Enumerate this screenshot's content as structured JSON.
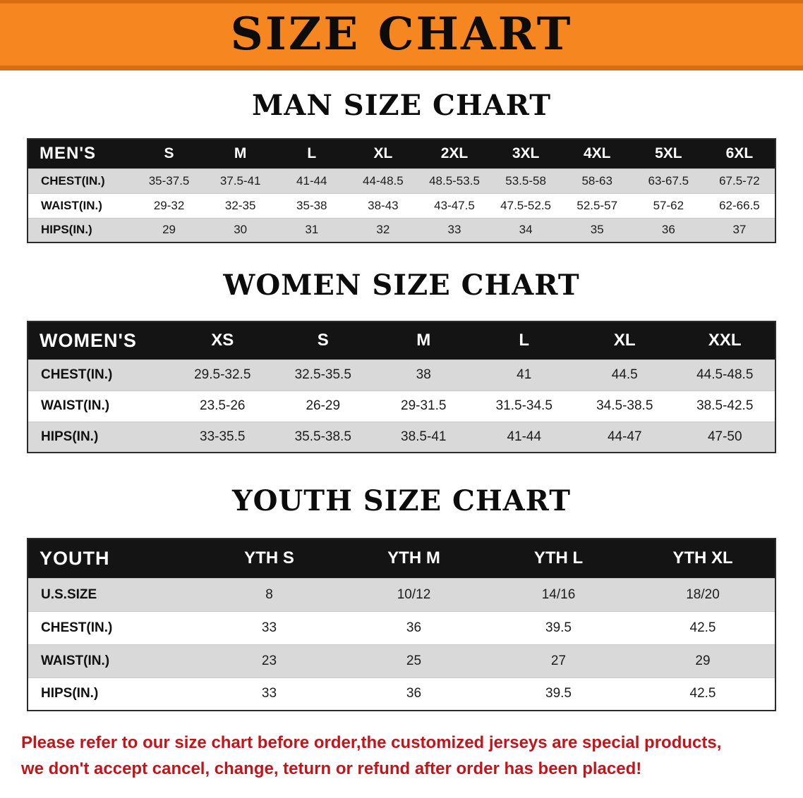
{
  "banner": {
    "title": "SIZE CHART"
  },
  "colors": {
    "banner_bg": "#F6861F",
    "banner_edge": "#D96D12",
    "header_bg": "#141414",
    "row_alt": "#D9D9D9",
    "disclaimer": "#C2151B"
  },
  "sections": [
    {
      "id": "men",
      "heading": "MAN SIZE CHART",
      "table": {
        "header": [
          "MEN'S",
          "S",
          "M",
          "L",
          "XL",
          "2XL",
          "3XL",
          "4XL",
          "5XL",
          "6XL"
        ],
        "rows": [
          [
            "CHEST(IN.)",
            "35-37.5",
            "37.5-41",
            "41-44",
            "44-48.5",
            "48.5-53.5",
            "53.5-58",
            "58-63",
            "63-67.5",
            "67.5-72"
          ],
          [
            "WAIST(IN.)",
            "29-32",
            "32-35",
            "35-38",
            "38-43",
            "43-47.5",
            "47.5-52.5",
            "52.5-57",
            "57-62",
            "62-66.5"
          ],
          [
            "HIPS(IN.)",
            "29",
            "30",
            "31",
            "32",
            "33",
            "34",
            "35",
            "36",
            "37"
          ]
        ]
      }
    },
    {
      "id": "women",
      "heading": "WOMEN SIZE CHART",
      "table": {
        "header": [
          "WOMEN'S",
          "XS",
          "S",
          "M",
          "L",
          "XL",
          "XXL"
        ],
        "rows": [
          [
            "CHEST(IN.)",
            "29.5-32.5",
            "32.5-35.5",
            "38",
            "41",
            "44.5",
            "44.5-48.5"
          ],
          [
            "WAIST(IN.)",
            "23.5-26",
            "26-29",
            "29-31.5",
            "31.5-34.5",
            "34.5-38.5",
            "38.5-42.5"
          ],
          [
            "HIPS(IN.)",
            "33-35.5",
            "35.5-38.5",
            "38.5-41",
            "41-44",
            "44-47",
            "47-50"
          ]
        ]
      }
    },
    {
      "id": "youth",
      "heading": "YOUTH SIZE CHART",
      "table": {
        "header": [
          "YOUTH",
          "YTH S",
          "YTH M",
          "YTH L",
          "YTH XL"
        ],
        "rows": [
          [
            "U.S.SIZE",
            "8",
            "10/12",
            "14/16",
            "18/20"
          ],
          [
            "CHEST(IN.)",
            "33",
            "36",
            "39.5",
            "42.5"
          ],
          [
            "WAIST(IN.)",
            "23",
            "25",
            "27",
            "29"
          ],
          [
            "HIPS(IN.)",
            "33",
            "36",
            "39.5",
            "42.5"
          ]
        ]
      }
    }
  ],
  "disclaimer": {
    "line1": "Please refer to our size chart before order,the customized jerseys are special products,",
    "line2": "we don't accept cancel, change, teturn or refund after order has been placed!"
  }
}
